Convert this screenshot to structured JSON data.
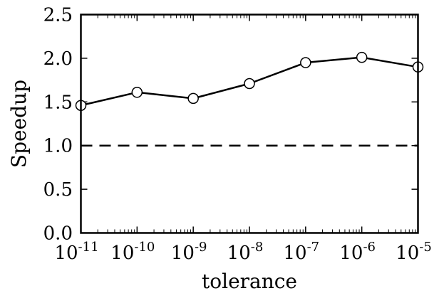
{
  "chart_data": {
    "type": "line",
    "xlabel": "tolerance",
    "ylabel": "Speedup",
    "x_scale": "log",
    "xlim": [
      1e-11,
      1e-05
    ],
    "ylim": [
      0.0,
      2.5
    ],
    "x_ticks": [
      {
        "value": 1e-11,
        "base": "10",
        "exp": "-11"
      },
      {
        "value": 1e-10,
        "base": "10",
        "exp": "-10"
      },
      {
        "value": 1e-09,
        "base": "10",
        "exp": "-9"
      },
      {
        "value": 1e-08,
        "base": "10",
        "exp": "-8"
      },
      {
        "value": 1e-07,
        "base": "10",
        "exp": "-7"
      },
      {
        "value": 1e-06,
        "base": "10",
        "exp": "-6"
      },
      {
        "value": 1e-05,
        "base": "10",
        "exp": "-5"
      }
    ],
    "y_ticks": [
      {
        "value": 0.0,
        "label": "0.0"
      },
      {
        "value": 0.5,
        "label": "0.5"
      },
      {
        "value": 1.0,
        "label": "1.0"
      },
      {
        "value": 1.5,
        "label": "1.5"
      },
      {
        "value": 2.0,
        "label": "2.0"
      },
      {
        "value": 2.5,
        "label": "2.5"
      }
    ],
    "series": [
      {
        "x": [
          1e-11,
          1e-10,
          1e-09,
          1e-08,
          1e-07,
          1e-06,
          1e-05
        ],
        "y": [
          1.46,
          1.61,
          1.54,
          1.71,
          1.95,
          2.01,
          1.9
        ],
        "color": "#000000",
        "marker": "open-circle"
      }
    ],
    "reference_line": {
      "y": 1.0,
      "style": "dashed",
      "color": "#000000"
    },
    "grid": false,
    "legend": "none"
  }
}
